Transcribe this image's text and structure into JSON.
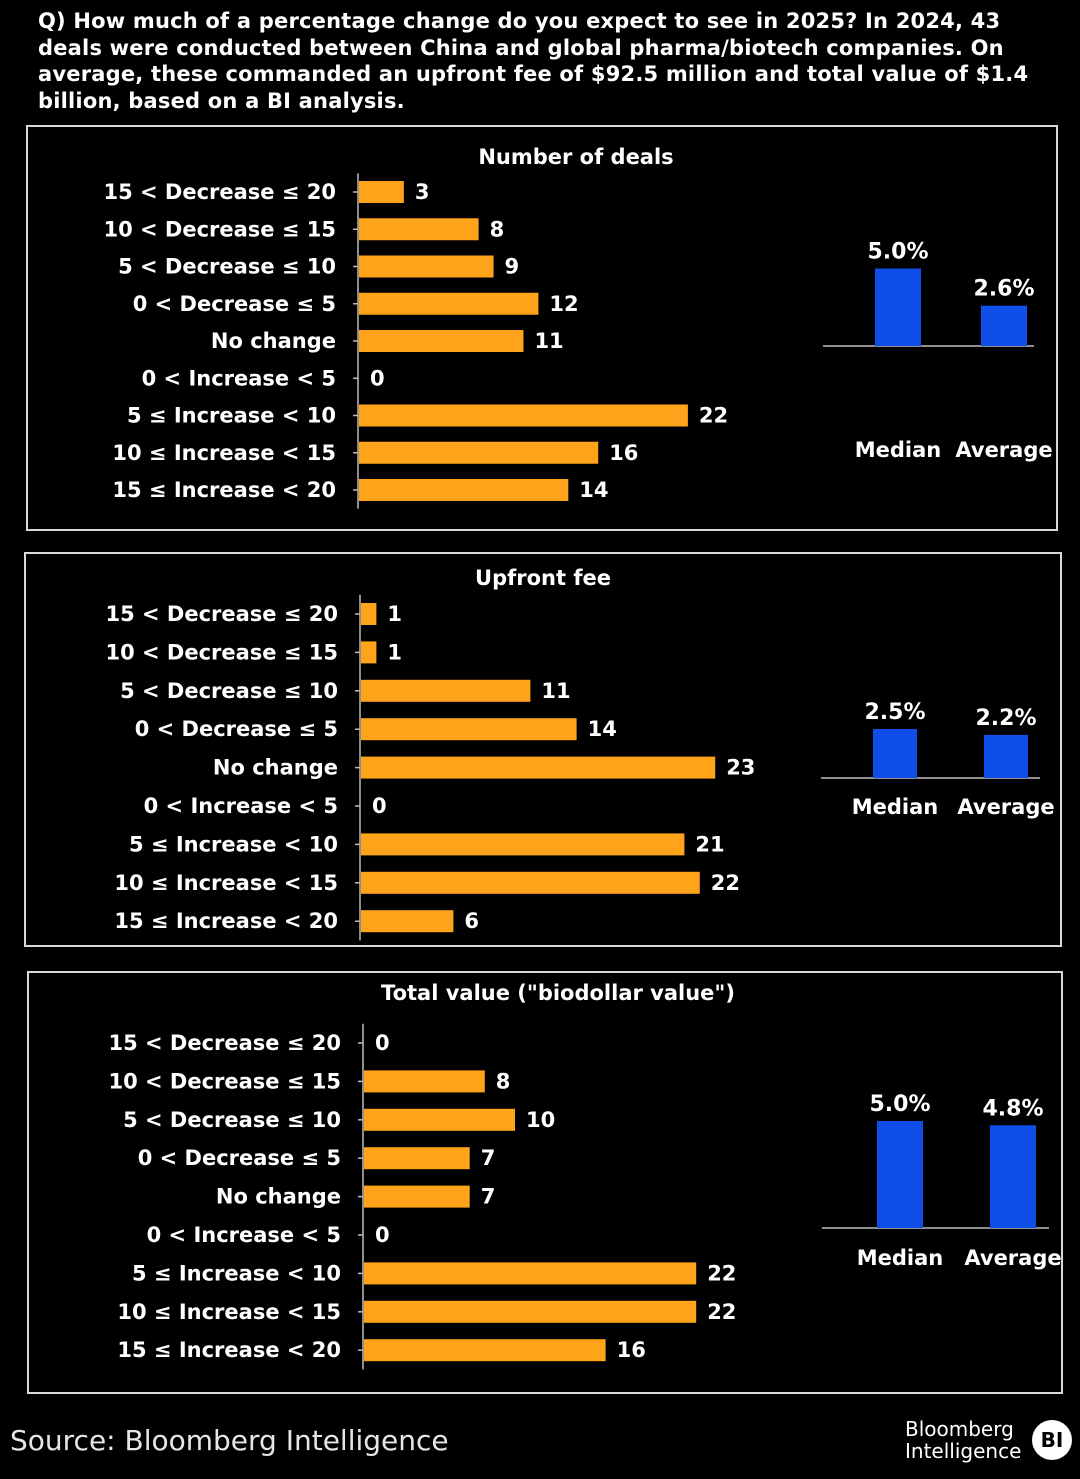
{
  "question": "Q)  How much of a percentage change do you expect to see in 2025? In 2024, 43 deals were conducted between China and global pharma/biotech companies. On average, these commanded an upfront fee of $92.5 million and total value of $1.4 billion, based on a BI analysis.",
  "colors": {
    "bar": "#ffa31a",
    "stat_bar": "#0f4ee8",
    "background": "#000000",
    "text": "#ffffff"
  },
  "chart_data": [
    {
      "type": "bar",
      "orientation": "horizontal",
      "title": "Number of deals",
      "categories": [
        "15 < Decrease ≤ 20",
        "10 < Decrease ≤ 15",
        "5 < Decrease ≤ 10",
        "0 < Decrease ≤ 5",
        "No change",
        "0 < Increase < 5",
        "5 ≤ Increase < 10",
        "10 ≤ Increase < 15",
        "15 ≤ Increase < 20"
      ],
      "values": [
        3,
        8,
        9,
        12,
        11,
        0,
        22,
        16,
        14
      ],
      "summary": {
        "type": "bar",
        "categories": [
          "Median",
          "Average"
        ],
        "labels": [
          "5.0%",
          "2.6%"
        ],
        "values": [
          5.0,
          2.6
        ]
      }
    },
    {
      "type": "bar",
      "orientation": "horizontal",
      "title": "Upfront fee",
      "categories": [
        "15 < Decrease ≤ 20",
        "10 < Decrease ≤ 15",
        "5 < Decrease ≤ 10",
        "0 < Decrease ≤ 5",
        "No change",
        "0 < Increase < 5",
        "5 ≤ Increase < 10",
        "10 ≤ Increase < 15",
        "15 ≤ Increase < 20"
      ],
      "values": [
        1,
        1,
        11,
        14,
        23,
        0,
        21,
        22,
        6
      ],
      "summary": {
        "type": "bar",
        "categories": [
          "Median",
          "Average"
        ],
        "labels": [
          "2.5%",
          "2.2%"
        ],
        "values": [
          2.5,
          2.2
        ]
      }
    },
    {
      "type": "bar",
      "orientation": "horizontal",
      "title": "Total value (\"biodollar value\")",
      "categories": [
        "15 < Decrease ≤ 20",
        "10 < Decrease ≤ 15",
        "5 < Decrease ≤ 10",
        "0 < Decrease ≤ 5",
        "No change",
        "0 < Increase < 5",
        "5 ≤ Increase < 10",
        "10 ≤ Increase < 15",
        "15 ≤ Increase < 20"
      ],
      "values": [
        0,
        8,
        10,
        7,
        7,
        0,
        22,
        22,
        16
      ],
      "summary": {
        "type": "bar",
        "categories": [
          "Median",
          "Average"
        ],
        "labels": [
          "5.0%",
          "4.8%"
        ],
        "values": [
          5.0,
          4.8
        ]
      }
    }
  ],
  "footer": {
    "source": "Source: Bloomberg Intelligence",
    "logo_line1": "Bloomberg",
    "logo_line2": "Intelligence",
    "logo_badge": "BI"
  }
}
